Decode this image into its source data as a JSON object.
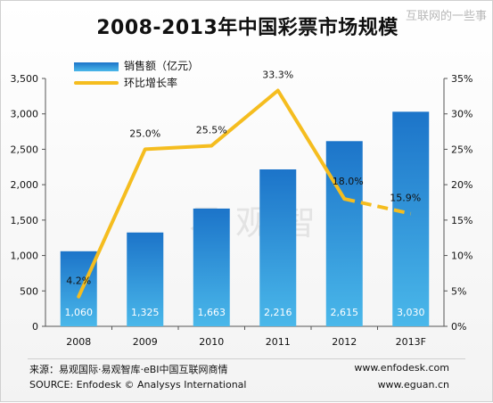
{
  "title": "2008-2013年中国彩票市场规模",
  "watermark_top": "互联网的一些事",
  "watermark_center": "易观智库",
  "legend": {
    "bars": "销售额（亿元）",
    "line": "环比增长率"
  },
  "source": {
    "left_line1": "来源：易观国际·易观智库·eBI中国互联网商情",
    "left_line2": "SOURCE:  Enfodesk © Analysys International",
    "right_line1": "www.enfodesk.com",
    "right_line2": "www.eguan.cn"
  },
  "chart_data": {
    "type": "bar",
    "categories": [
      "2008",
      "2009",
      "2010",
      "2011",
      "2012",
      "2013F"
    ],
    "series": [
      {
        "name": "销售额（亿元）",
        "type": "bar",
        "axis": "left",
        "values": [
          1060,
          1325,
          1663,
          2216,
          2615,
          3030
        ],
        "labels": [
          "1,060",
          "1,325",
          "1,663",
          "2,216",
          "2,615",
          "3,030"
        ],
        "color_top": "#1c74c9",
        "color_bottom": "#4ab8ea"
      },
      {
        "name": "环比增长率",
        "type": "line",
        "axis": "right",
        "values": [
          4.2,
          25.0,
          25.5,
          33.3,
          18.0,
          15.9
        ],
        "labels": [
          "4.2%",
          "25.0%",
          "25.5%",
          "33.3%",
          "18.0%",
          "15.9%"
        ],
        "forecast_from_index": 4,
        "color": "#f5bd1f"
      }
    ],
    "y_left": {
      "min": 0,
      "max": 3500,
      "step": 500,
      "tick_labels": [
        "0",
        "500",
        "1,000",
        "1,500",
        "2,000",
        "2,500",
        "3,000",
        "3,500"
      ]
    },
    "y_right": {
      "min": 0,
      "max": 35,
      "step": 5,
      "tick_labels": [
        "0%",
        "5%",
        "10%",
        "15%",
        "20%",
        "25%",
        "30%",
        "35%"
      ]
    },
    "grid": false,
    "legend_position": "top-left"
  }
}
